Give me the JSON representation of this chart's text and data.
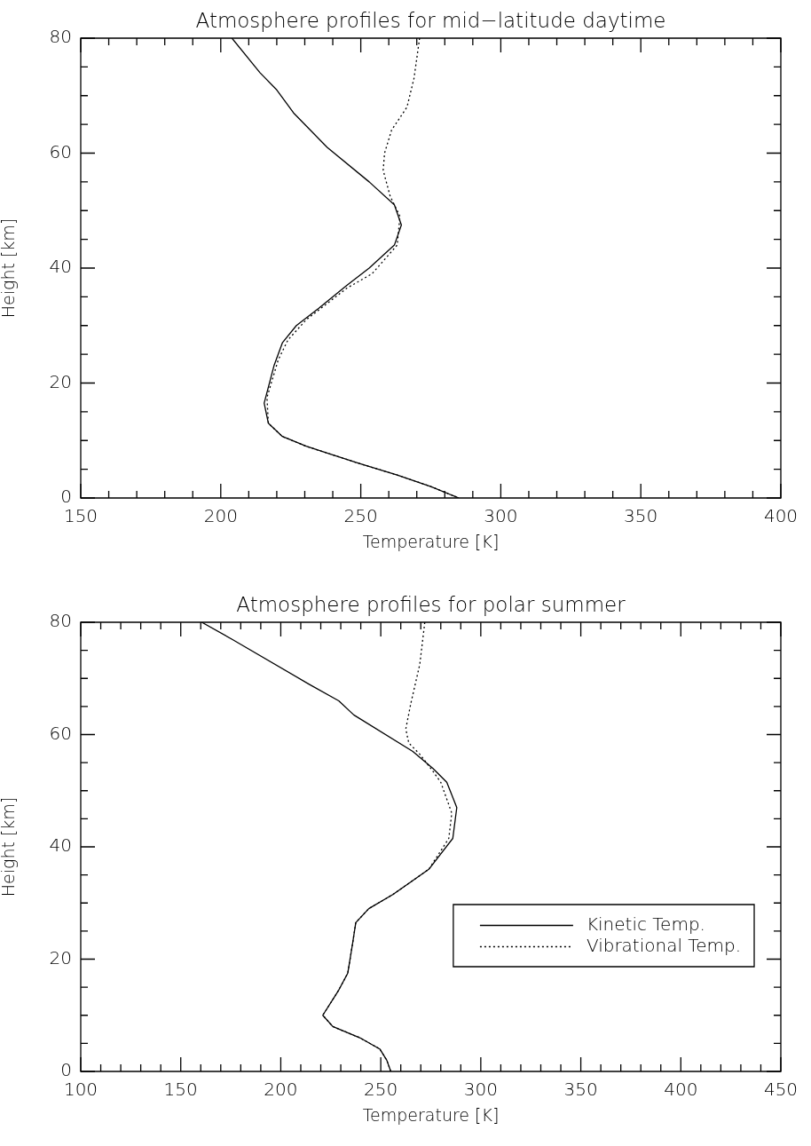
{
  "chart_data": [
    {
      "type": "line",
      "title": "Atmosphere profiles for mid−latitude daytime",
      "xlabel": "Temperature [K]",
      "ylabel": "Height [km]",
      "xlim": [
        150,
        400
      ],
      "ylim": [
        0,
        80
      ],
      "xticks": [
        150,
        {
          "value": 160,
          "label": null
        },
        {
          "value": 170,
          "label": null
        },
        {
          "value": 180,
          "label": null
        },
        {
          "value": 190,
          "label": null
        },
        200,
        {
          "value": 210,
          "label": null
        },
        {
          "value": 220,
          "label": null
        },
        {
          "value": 230,
          "label": null
        },
        {
          "value": 240,
          "label": null
        },
        250,
        {
          "value": 260,
          "label": null
        },
        {
          "value": 270,
          "label": null
        },
        {
          "value": 280,
          "label": null
        },
        {
          "value": 290,
          "label": null
        },
        300,
        {
          "value": 310,
          "label": null
        },
        {
          "value": 320,
          "label": null
        },
        {
          "value": 330,
          "label": null
        },
        {
          "value": 340,
          "label": null
        },
        350,
        {
          "value": 360,
          "label": null
        },
        {
          "value": 370,
          "label": null
        },
        {
          "value": 380,
          "label": null
        },
        {
          "value": 390,
          "label": null
        },
        400
      ],
      "yticks": [
        0,
        {
          "value": 5,
          "label": null
        },
        {
          "value": 10,
          "label": null
        },
        {
          "value": 15,
          "label": null
        },
        20,
        {
          "value": 25,
          "label": null
        },
        {
          "value": 30,
          "label": null
        },
        {
          "value": 35,
          "label": null
        },
        40,
        {
          "value": 45,
          "label": null
        },
        {
          "value": 50,
          "label": null
        },
        {
          "value": 55,
          "label": null
        },
        60,
        {
          "value": 65,
          "label": null
        },
        {
          "value": 70,
          "label": null
        },
        {
          "value": 75,
          "label": null
        },
        80
      ],
      "grid": false,
      "legend": false,
      "marker": "none",
      "series": [
        {
          "color": "#000000",
          "line_style": "solid",
          "x": [
            204,
            214,
            220,
            226,
            238,
            253,
            262,
            264.5,
            262,
            253,
            245,
            235,
            227,
            222,
            219,
            215.5,
            217,
            222,
            230.5,
            249.5,
            263,
            275,
            285
          ],
          "values": [
            80,
            74,
            71,
            67,
            61,
            55,
            51,
            47.5,
            44,
            40,
            37,
            33,
            30,
            27,
            23,
            16.5,
            13,
            10.7,
            9,
            6,
            4,
            2,
            0
          ]
        },
        {
          "color": "#000000",
          "line_style": "dotted",
          "x": [
            271,
            269,
            266.5,
            261,
            258.5,
            258,
            260.5,
            264,
            263,
            254,
            245,
            230.5,
            224,
            220.5,
            216.5,
            217,
            222,
            230.5,
            249.5,
            263,
            275,
            285
          ],
          "values": [
            80,
            73,
            68,
            64,
            60,
            57,
            52.5,
            49,
            44,
            39,
            36.5,
            31,
            27.5,
            24,
            17.5,
            13,
            10.7,
            9,
            6,
            4,
            2,
            0
          ]
        }
      ]
    },
    {
      "type": "line",
      "title": "Atmosphere profiles for polar summer",
      "xlabel": "Temperature [K]",
      "ylabel": "Height [km]",
      "xlim": [
        100,
        450
      ],
      "ylim": [
        0,
        80
      ],
      "xticks": [
        100,
        {
          "value": 110,
          "label": null
        },
        {
          "value": 120,
          "label": null
        },
        {
          "value": 130,
          "label": null
        },
        {
          "value": 140,
          "label": null
        },
        150,
        {
          "value": 160,
          "label": null
        },
        {
          "value": 170,
          "label": null
        },
        {
          "value": 180,
          "label": null
        },
        {
          "value": 190,
          "label": null
        },
        200,
        {
          "value": 210,
          "label": null
        },
        {
          "value": 220,
          "label": null
        },
        {
          "value": 230,
          "label": null
        },
        {
          "value": 240,
          "label": null
        },
        250,
        {
          "value": 260,
          "label": null
        },
        {
          "value": 270,
          "label": null
        },
        {
          "value": 280,
          "label": null
        },
        {
          "value": 290,
          "label": null
        },
        300,
        {
          "value": 310,
          "label": null
        },
        {
          "value": 320,
          "label": null
        },
        {
          "value": 330,
          "label": null
        },
        {
          "value": 340,
          "label": null
        },
        350,
        {
          "value": 360,
          "label": null
        },
        {
          "value": 370,
          "label": null
        },
        {
          "value": 380,
          "label": null
        },
        {
          "value": 390,
          "label": null
        },
        400,
        {
          "value": 410,
          "label": null
        },
        {
          "value": 420,
          "label": null
        },
        {
          "value": 430,
          "label": null
        },
        {
          "value": 440,
          "label": null
        },
        450
      ],
      "yticks": [
        0,
        {
          "value": 5,
          "label": null
        },
        {
          "value": 10,
          "label": null
        },
        {
          "value": 15,
          "label": null
        },
        20,
        {
          "value": 25,
          "label": null
        },
        {
          "value": 30,
          "label": null
        },
        {
          "value": 35,
          "label": null
        },
        40,
        {
          "value": 45,
          "label": null
        },
        {
          "value": 50,
          "label": null
        },
        {
          "value": 55,
          "label": null
        },
        60,
        {
          "value": 65,
          "label": null
        },
        {
          "value": 70,
          "label": null
        },
        {
          "value": 75,
          "label": null
        },
        80
      ],
      "grid": false,
      "legend": "right",
      "marker": "none",
      "series": [
        {
          "name": "Kinetic Temp.",
          "color": "#000000",
          "line_style": "solid",
          "x": [
            160.5,
            175.5,
            214,
            229,
            236.5,
            266,
            276,
            283,
            288,
            286,
            274,
            266,
            256,
            244,
            237.5,
            236,
            233.5,
            229,
            221,
            226,
            239.5,
            249.5,
            253,
            255
          ],
          "values": [
            80,
            77,
            69,
            66,
            63.5,
            57,
            54,
            51.5,
            47,
            41.5,
            36,
            34,
            31.5,
            29,
            26.5,
            23,
            17.5,
            14.5,
            10,
            8,
            6,
            4,
            2,
            0
          ]
        },
        {
          "name": "Vibrational Temp.",
          "color": "#000000",
          "line_style": "dotted",
          "x": [
            272,
            269.5,
            265,
            262.5,
            264,
            269.5,
            276,
            280,
            285.5,
            284,
            274,
            266,
            256,
            244,
            237.5,
            236,
            233.5,
            229,
            221,
            226,
            239.5,
            249.5,
            253,
            255
          ],
          "values": [
            80,
            72.5,
            65.5,
            61,
            58.5,
            56.5,
            53.5,
            51.5,
            46,
            41.5,
            36,
            34,
            31.5,
            29,
            26.5,
            23,
            17.5,
            14.5,
            10,
            8,
            6,
            4,
            2,
            0
          ]
        }
      ]
    }
  ]
}
